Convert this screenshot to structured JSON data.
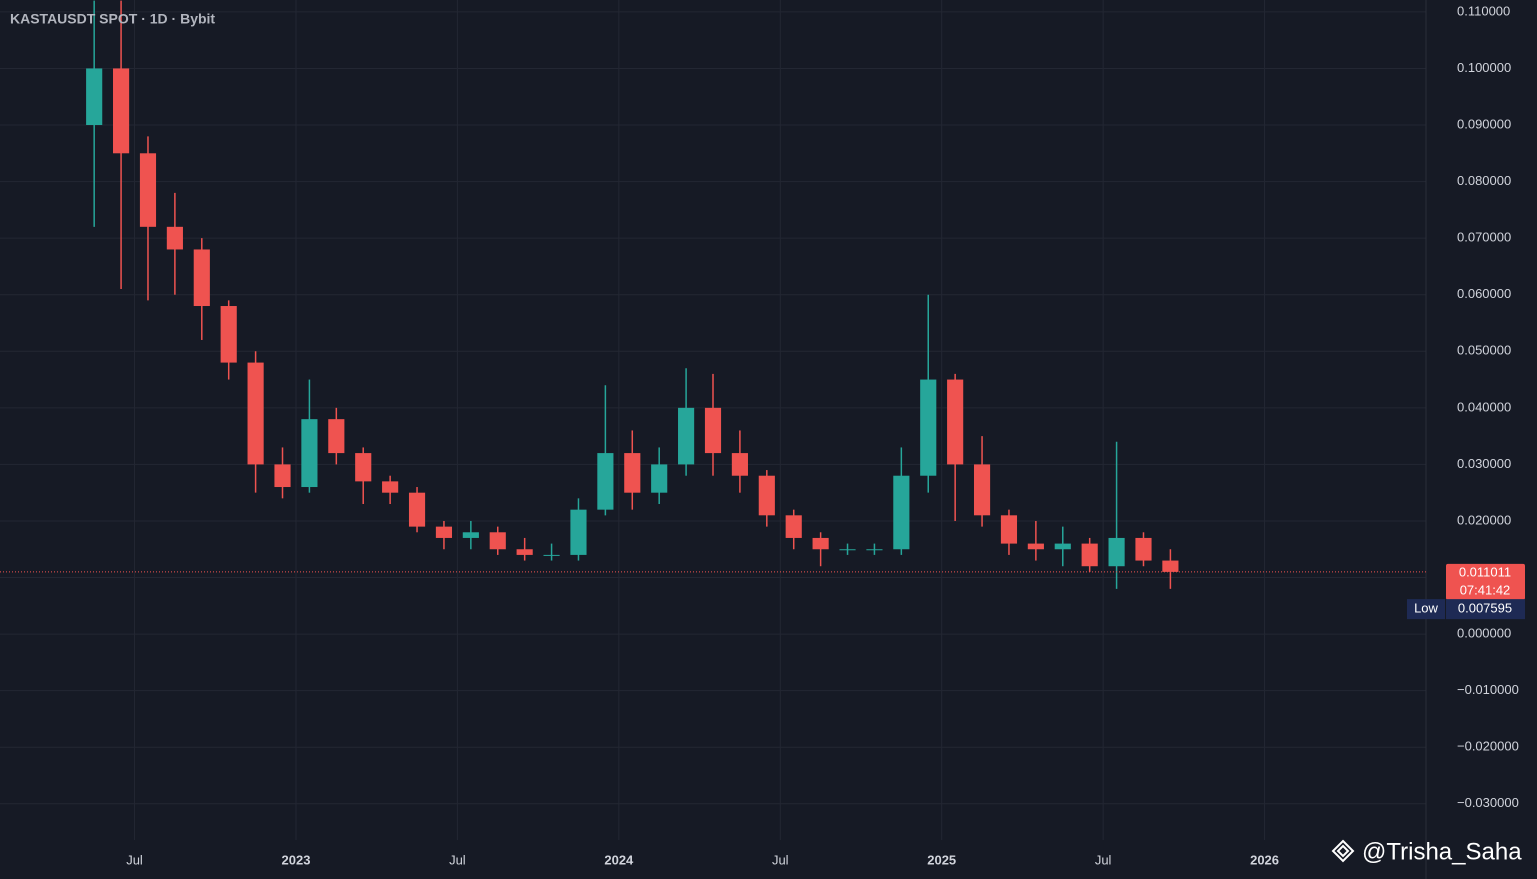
{
  "chart_data": {
    "type": "candlestick",
    "title": "KASTAUSDT SPOT · 1D · Bybit",
    "x": [
      "2022-05",
      "2022-06",
      "2022-07",
      "2022-08",
      "2022-09",
      "2022-10",
      "2022-11",
      "2022-12",
      "2023-01",
      "2023-02",
      "2023-03",
      "2023-04",
      "2023-05",
      "2023-06",
      "2023-07",
      "2023-08",
      "2023-09",
      "2023-10",
      "2023-11",
      "2023-12",
      "2024-01",
      "2024-02",
      "2024-03",
      "2024-04",
      "2024-05",
      "2024-06",
      "2024-07",
      "2024-08",
      "2024-09",
      "2024-10",
      "2024-11",
      "2024-12",
      "2025-01",
      "2025-02",
      "2025-03",
      "2025-04",
      "2025-05",
      "2025-06",
      "2025-07",
      "2025-08",
      "2025-09"
    ],
    "open": [
      0.09,
      0.1,
      0.085,
      0.072,
      0.068,
      0.058,
      0.048,
      0.03,
      0.026,
      0.038,
      0.032,
      0.027,
      0.025,
      0.019,
      0.017,
      0.018,
      0.015,
      0.014,
      0.014,
      0.022,
      0.032,
      0.025,
      0.03,
      0.04,
      0.032,
      0.028,
      0.021,
      0.017,
      0.015,
      0.015,
      0.015,
      0.028,
      0.045,
      0.03,
      0.021,
      0.016,
      0.015,
      0.016,
      0.012,
      0.017,
      0.013
    ],
    "high": [
      0.112,
      0.112,
      0.088,
      0.078,
      0.07,
      0.059,
      0.05,
      0.033,
      0.045,
      0.04,
      0.033,
      0.028,
      0.026,
      0.02,
      0.02,
      0.019,
      0.017,
      0.016,
      0.024,
      0.044,
      0.036,
      0.033,
      0.047,
      0.046,
      0.036,
      0.029,
      0.022,
      0.018,
      0.016,
      0.016,
      0.033,
      0.06,
      0.046,
      0.035,
      0.022,
      0.02,
      0.019,
      0.017,
      0.034,
      0.018,
      0.015
    ],
    "low": [
      0.072,
      0.061,
      0.059,
      0.06,
      0.052,
      0.045,
      0.025,
      0.024,
      0.025,
      0.03,
      0.023,
      0.023,
      0.018,
      0.015,
      0.015,
      0.014,
      0.013,
      0.013,
      0.013,
      0.021,
      0.022,
      0.023,
      0.028,
      0.028,
      0.025,
      0.019,
      0.015,
      0.012,
      0.014,
      0.014,
      0.014,
      0.025,
      0.02,
      0.019,
      0.014,
      0.013,
      0.012,
      0.011,
      0.008,
      0.012,
      0.008
    ],
    "close": [
      0.1,
      0.085,
      0.072,
      0.068,
      0.058,
      0.048,
      0.03,
      0.026,
      0.038,
      0.032,
      0.027,
      0.025,
      0.019,
      0.017,
      0.018,
      0.015,
      0.014,
      0.014,
      0.022,
      0.032,
      0.025,
      0.03,
      0.04,
      0.032,
      0.028,
      0.021,
      0.017,
      0.015,
      0.015,
      0.015,
      0.028,
      0.045,
      0.03,
      0.021,
      0.016,
      0.015,
      0.016,
      0.012,
      0.017,
      0.013,
      0.011
    ],
    "up_color": "#26a69a",
    "down_color": "#ef5350",
    "xlim": [
      "2022-02",
      "2026-07"
    ],
    "xticks": [
      {
        "value": "2022-07",
        "label": "Jul"
      },
      {
        "value": "2023-01",
        "label": "2023"
      },
      {
        "value": "2023-07",
        "label": "Jul"
      },
      {
        "value": "2024-01",
        "label": "2024"
      },
      {
        "value": "2024-07",
        "label": "Jul"
      },
      {
        "value": "2025-01",
        "label": "2025"
      },
      {
        "value": "2025-07",
        "label": "Jul"
      },
      {
        "value": "2026-01",
        "label": "2026"
      }
    ],
    "ylim": [
      -0.0364,
      0.1121
    ],
    "yticks": [
      {
        "value": -0.03,
        "label": "−0.030000"
      },
      {
        "value": -0.02,
        "label": "−0.020000"
      },
      {
        "value": -0.01,
        "label": "−0.010000"
      },
      {
        "value": 0,
        "label": "0.000000"
      },
      {
        "value": 0.01,
        "label": "0.010000"
      },
      {
        "value": 0.02,
        "label": "0.020000"
      },
      {
        "value": 0.03,
        "label": "0.030000"
      },
      {
        "value": 0.04,
        "label": "0.040000"
      },
      {
        "value": 0.05,
        "label": "0.050000"
      },
      {
        "value": 0.06,
        "label": "0.060000"
      },
      {
        "value": 0.07,
        "label": "0.070000"
      },
      {
        "value": 0.08,
        "label": "0.080000"
      },
      {
        "value": 0.09,
        "label": "0.090000"
      },
      {
        "value": 0.1,
        "label": "0.100000"
      },
      {
        "value": 0.11,
        "label": "0.110000"
      }
    ],
    "grid": true,
    "last_price": {
      "value": 0.011011,
      "label": "0.011011",
      "countdown": "07:41:42"
    },
    "low_marker": {
      "name": "Low",
      "value": 0.007595,
      "label": "0.007595"
    },
    "watermark": "@Trisha_Saha"
  }
}
